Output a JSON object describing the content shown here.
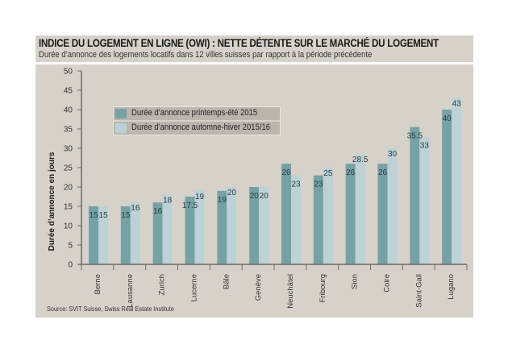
{
  "header": {
    "title": "INDICE DU LOGEMENT EN LIGNE (OWI) : NETTE DÉTENTE SUR LE MARCHÉ DU LOGEMENT",
    "subtitle": "Durée d’annonce des logements locatifs dans 12 villes suisses par rapport à la période précédente"
  },
  "source": "Source: SVIT Suisse, Swiss Real Estate Institute",
  "colors": {
    "series1": "#76a1a5",
    "series2": "#bcd2d6",
    "background": "#d6d2ca",
    "axis": "#6b6a66"
  },
  "chart_data": {
    "type": "bar",
    "title": "INDICE DU LOGEMENT EN LIGNE (OWI) : NETTE DÉTENTE SUR LE MARCHÉ DU LOGEMENT",
    "subtitle": "Durée d’annonce des logements locatifs dans 12 villes suisses par rapport à la période précédente",
    "xlabel": "",
    "ylabel": "Durée d’annonce en jours",
    "ylim": [
      0,
      50
    ],
    "yticks": [
      0,
      5,
      10,
      15,
      20,
      25,
      30,
      35,
      40,
      45,
      50
    ],
    "grid": false,
    "legend_position": "top-left",
    "categories": [
      "Berne",
      "Lausanne",
      "Zurich",
      "Lucerne",
      "Bâle",
      "Genève",
      "Neuchâtel",
      "Fribourg",
      "Sion",
      "Coire",
      "Saint-Gall",
      "Lugano"
    ],
    "series": [
      {
        "name": "Durée d’annonce printemps-été 2015",
        "values": [
          15,
          15,
          16,
          17.5,
          19,
          20,
          26,
          23,
          26,
          26,
          35.5,
          40
        ]
      },
      {
        "name": "Durée d’annonce automne-hiver 2015/16",
        "values": [
          15,
          16,
          18,
          19,
          20,
          20,
          23,
          25,
          28.5,
          30,
          33,
          43
        ]
      }
    ]
  }
}
